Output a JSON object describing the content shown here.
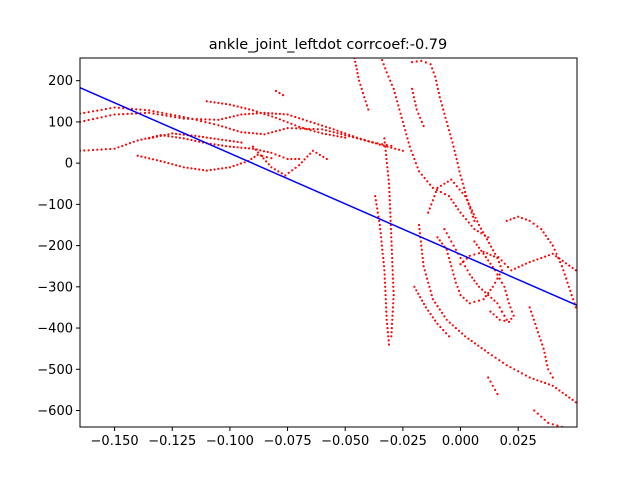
{
  "chart_data": {
    "type": "scatter",
    "title": "ankle_joint_leftdot corrcoef:-0.79",
    "xlabel": "",
    "ylabel": "",
    "xlim": [
      -0.165,
      0.0505
    ],
    "ylim": [
      -640,
      255
    ],
    "x_ticks": [
      -0.15,
      -0.125,
      -0.1,
      -0.075,
      -0.05,
      -0.025,
      0.0,
      0.025
    ],
    "x_tick_labels": [
      "−0.150",
      "−0.125",
      "−0.100",
      "−0.075",
      "−0.050",
      "−0.025",
      "0.000",
      "0.025"
    ],
    "y_ticks": [
      200,
      100,
      0,
      -100,
      -200,
      -300,
      -400,
      -500,
      -600
    ],
    "y_tick_labels": [
      "200",
      "100",
      "0",
      "−100",
      "−200",
      "−300",
      "−400",
      "−500",
      "−600"
    ],
    "grid": false,
    "series": [
      {
        "color": "#ff0000",
        "marker": "dot",
        "segments": [
          [
            [
              -0.165,
              120
            ],
            [
              -0.15,
              135
            ],
            [
              -0.135,
              128
            ],
            [
              -0.12,
              112
            ],
            [
              -0.105,
              92
            ],
            [
              -0.095,
              75
            ],
            [
              -0.085,
              70
            ],
            [
              -0.075,
              85
            ],
            [
              -0.06,
              82
            ],
            [
              -0.05,
              68
            ],
            [
              -0.038,
              50
            ],
            [
              -0.03,
              42
            ]
          ],
          [
            [
              -0.165,
              100
            ],
            [
              -0.15,
              118
            ],
            [
              -0.135,
              122
            ],
            [
              -0.12,
              108
            ],
            [
              -0.105,
              105
            ],
            [
              -0.095,
              118
            ],
            [
              -0.085,
              122
            ],
            [
              -0.075,
              118
            ],
            [
              -0.065,
              100
            ],
            [
              -0.055,
              82
            ],
            [
              -0.045,
              62
            ],
            [
              -0.035,
              45
            ],
            [
              -0.025,
              30
            ]
          ],
          [
            [
              -0.165,
              30
            ],
            [
              -0.15,
              35
            ],
            [
              -0.14,
              55
            ],
            [
              -0.13,
              68
            ],
            [
              -0.12,
              60
            ],
            [
              -0.11,
              48
            ],
            [
              -0.1,
              40
            ],
            [
              -0.09,
              35
            ],
            [
              -0.082,
              25
            ],
            [
              -0.075,
              10
            ],
            [
              -0.07,
              10
            ]
          ],
          [
            [
              -0.14,
              18
            ],
            [
              -0.13,
              5
            ],
            [
              -0.12,
              -10
            ],
            [
              -0.11,
              -18
            ],
            [
              -0.1,
              -10
            ],
            [
              -0.092,
              5
            ],
            [
              -0.088,
              20
            ],
            [
              -0.082,
              12
            ]
          ],
          [
            [
              -0.135,
              60
            ],
            [
              -0.125,
              72
            ],
            [
              -0.115,
              66
            ],
            [
              -0.105,
              58
            ],
            [
              -0.095,
              50
            ]
          ],
          [
            [
              -0.11,
              150
            ],
            [
              -0.1,
              142
            ],
            [
              -0.09,
              128
            ],
            [
              -0.08,
              110
            ],
            [
              -0.07,
              88
            ],
            [
              -0.06,
              72
            ],
            [
              -0.05,
              62
            ]
          ],
          [
            [
              -0.09,
              40
            ],
            [
              -0.082,
              -10
            ],
            [
              -0.076,
              -30
            ],
            [
              -0.07,
              -5
            ],
            [
              -0.064,
              30
            ],
            [
              -0.058,
              10
            ]
          ],
          [
            [
              -0.08,
              175
            ],
            [
              -0.077,
              165
            ]
          ],
          [
            [
              -0.033,
              60
            ],
            [
              -0.031,
              -50
            ],
            [
              -0.03,
              -180
            ],
            [
              -0.029,
              -320
            ],
            [
              -0.03,
              -420
            ]
          ],
          [
            [
              -0.037,
              -80
            ],
            [
              -0.035,
              -150
            ],
            [
              -0.033,
              -260
            ],
            [
              -0.032,
              -380
            ],
            [
              -0.031,
              -440
            ]
          ],
          [
            [
              -0.034,
              250
            ],
            [
              -0.032,
              220
            ],
            [
              -0.029,
              180
            ],
            [
              -0.026,
              120
            ],
            [
              -0.022,
              40
            ],
            [
              -0.018,
              -20
            ],
            [
              -0.012,
              -60
            ],
            [
              -0.005,
              -80
            ],
            [
              0.0,
              -120
            ],
            [
              0.006,
              -160
            ],
            [
              0.012,
              -180
            ]
          ],
          [
            [
              -0.021,
              245
            ],
            [
              -0.017,
              248
            ],
            [
              -0.013,
              240
            ],
            [
              -0.011,
              210
            ],
            [
              -0.009,
              160
            ],
            [
              -0.006,
              100
            ],
            [
              -0.003,
              40
            ],
            [
              0.0,
              -30
            ],
            [
              0.003,
              -90
            ],
            [
              0.006,
              -140
            ]
          ],
          [
            [
              -0.046,
              255
            ],
            [
              -0.044,
              200
            ],
            [
              -0.04,
              130
            ]
          ],
          [
            [
              -0.021,
              180
            ],
            [
              -0.019,
              130
            ],
            [
              -0.016,
              90
            ]
          ],
          [
            [
              -0.014,
              -120
            ],
            [
              -0.01,
              -60
            ],
            [
              -0.004,
              -40
            ],
            [
              0.002,
              -80
            ],
            [
              0.008,
              -150
            ],
            [
              0.015,
              -220
            ],
            [
              0.022,
              -260
            ],
            [
              0.03,
              -240
            ],
            [
              0.04,
              -220
            ],
            [
              0.05,
              -260
            ]
          ],
          [
            [
              -0.01,
              -180
            ],
            [
              -0.006,
              -210
            ],
            [
              -0.004,
              -250
            ],
            [
              -0.002,
              -290
            ],
            [
              0.0,
              -320
            ],
            [
              0.004,
              -340
            ],
            [
              0.01,
              -330
            ],
            [
              0.014,
              -300
            ],
            [
              0.018,
              -260
            ],
            [
              0.016,
              -230
            ],
            [
              0.01,
              -215
            ],
            [
              0.004,
              -225
            ],
            [
              0.0,
              -245
            ]
          ],
          [
            [
              -0.007,
              -160
            ],
            [
              -0.004,
              -190
            ],
            [
              0.0,
              -230
            ],
            [
              0.004,
              -270
            ],
            [
              0.008,
              -300
            ],
            [
              0.012,
              -320
            ],
            [
              0.016,
              -340
            ],
            [
              0.02,
              -380
            ],
            [
              0.018,
              -360
            ]
          ],
          [
            [
              0.006,
              -190
            ],
            [
              0.01,
              -220
            ],
            [
              0.015,
              -260
            ],
            [
              0.019,
              -300
            ],
            [
              0.021,
              -340
            ],
            [
              0.023,
              -370
            ],
            [
              0.021,
              -385
            ],
            [
              0.017,
              -380
            ],
            [
              0.013,
              -360
            ]
          ],
          [
            [
              -0.018,
              -150
            ],
            [
              -0.016,
              -250
            ],
            [
              -0.012,
              -330
            ],
            [
              -0.006,
              -380
            ],
            [
              0.002,
              -420
            ],
            [
              0.012,
              -460
            ],
            [
              0.02,
              -490
            ],
            [
              0.03,
              -520
            ],
            [
              0.04,
              -540
            ],
            [
              0.05,
              -580
            ]
          ],
          [
            [
              0.02,
              -140
            ],
            [
              0.025,
              -130
            ],
            [
              0.03,
              -140
            ],
            [
              0.035,
              -160
            ],
            [
              0.04,
              -200
            ],
            [
              0.044,
              -250
            ],
            [
              0.047,
              -300
            ],
            [
              0.05,
              -350
            ]
          ],
          [
            [
              0.03,
              -350
            ],
            [
              0.033,
              -400
            ],
            [
              0.036,
              -450
            ],
            [
              0.038,
              -500
            ],
            [
              0.04,
              -520
            ]
          ],
          [
            [
              -0.02,
              -300
            ],
            [
              -0.015,
              -350
            ],
            [
              -0.01,
              -390
            ],
            [
              -0.005,
              -420
            ]
          ],
          [
            [
              0.032,
              -600
            ],
            [
              0.038,
              -630
            ],
            [
              0.044,
              -640
            ]
          ],
          [
            [
              0.012,
              -520
            ],
            [
              0.016,
              -560
            ]
          ]
        ]
      },
      {
        "color": "#0000ff",
        "marker": "line",
        "x": [
          -0.165,
          0.0505
        ],
        "y": [
          183,
          -345
        ]
      }
    ]
  }
}
